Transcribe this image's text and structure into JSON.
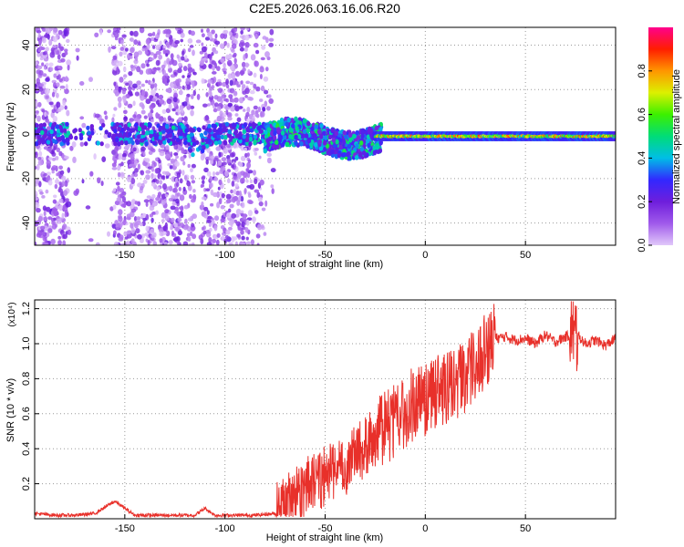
{
  "title": "C2E5.2026.063.16.06.R20",
  "chart_data": [
    {
      "type": "heatmap",
      "xlabel": "Height of straight line (km)",
      "ylabel": "Frequency (Hz)",
      "xlim": [
        -195,
        95
      ],
      "ylim": [
        -50,
        48
      ],
      "xticks": [
        -150,
        -100,
        -50,
        0,
        50
      ],
      "yticks": [
        -40,
        -20,
        0,
        20,
        40
      ],
      "grid": true,
      "colorbar": {
        "label": "Normalized spectral amplitude",
        "range": [
          0,
          1
        ],
        "ticks": [
          0.0,
          0.2,
          0.4,
          0.6,
          0.8
        ],
        "colormap": [
          "#ffffff",
          "#d8b4f8",
          "#8a2be2",
          "#3030ff",
          "#00e0ff",
          "#00ff40",
          "#f0ff00",
          "#ff8000",
          "#ff0000",
          "#ff00a0"
        ]
      },
      "features": [
        {
          "name": "noise scatter",
          "x_range": [
            -195,
            -75
          ],
          "y_range": [
            -50,
            48
          ],
          "amplitude": 0.05,
          "gaps_x": [
            [
              -178,
              -156
            ],
            [
              -115,
              -112
            ]
          ]
        },
        {
          "name": "central band",
          "x_range": [
            -195,
            -80
          ],
          "center_hz": 0,
          "amplitude": 0.25
        },
        {
          "name": "central band",
          "x_range": [
            -80,
            -25
          ],
          "center_hz": -2,
          "amplitude": 0.3
        },
        {
          "name": "central band",
          "x_range": [
            -25,
            95
          ],
          "center_hz": -1,
          "amplitude": 0.75
        }
      ]
    },
    {
      "type": "line",
      "xlabel": "Height of straight line (km)",
      "ylabel": "SNR (10 * v/v)",
      "y_multiplier": "(x10⁴)",
      "xlim": [
        -195,
        95
      ],
      "ylim": [
        0,
        1.25
      ],
      "xticks": [
        -150,
        -100,
        -50,
        0,
        50
      ],
      "yticks": [
        0.2,
        0.4,
        0.6,
        0.8,
        1.0,
        1.2
      ],
      "grid": true,
      "series": [
        {
          "color": "#e8302a",
          "x": [
            -195,
            -185,
            -175,
            -165,
            -155,
            -150,
            -145,
            -135,
            -125,
            -115,
            -110,
            -105,
            -95,
            -85,
            -75,
            -70,
            -65,
            -60,
            -55,
            -50,
            -45,
            -40,
            -35,
            -30,
            -25,
            -20,
            -15,
            -10,
            -5,
            0,
            5,
            10,
            15,
            20,
            25,
            30,
            35,
            40,
            45,
            50,
            55,
            60,
            65,
            70,
            75,
            80,
            85,
            90,
            95
          ],
          "y": [
            0.03,
            0.02,
            0.02,
            0.03,
            0.1,
            0.06,
            0.02,
            0.02,
            0.02,
            0.02,
            0.06,
            0.02,
            0.02,
            0.02,
            0.03,
            0.08,
            0.13,
            0.17,
            0.21,
            0.24,
            0.28,
            0.3,
            0.36,
            0.42,
            0.47,
            0.52,
            0.56,
            0.62,
            0.66,
            0.68,
            0.72,
            0.75,
            0.78,
            0.82,
            0.88,
            0.96,
            1.03,
            1.04,
            1.02,
            1.03,
            1.0,
            1.05,
            1.01,
            1.04,
            1.06,
            1.0,
            1.02,
            0.99,
            1.03
          ]
        }
      ],
      "noise_amplitude": [
        {
          "x_range": [
            -195,
            -75
          ],
          "amplitude": 0.01
        },
        {
          "x_range": [
            -75,
            -25
          ],
          "amplitude": 0.1
        },
        {
          "x_range": [
            -25,
            35
          ],
          "amplitude": 0.12
        },
        {
          "x_range": [
            35,
            95
          ],
          "amplitude": 0.03
        }
      ]
    }
  ]
}
